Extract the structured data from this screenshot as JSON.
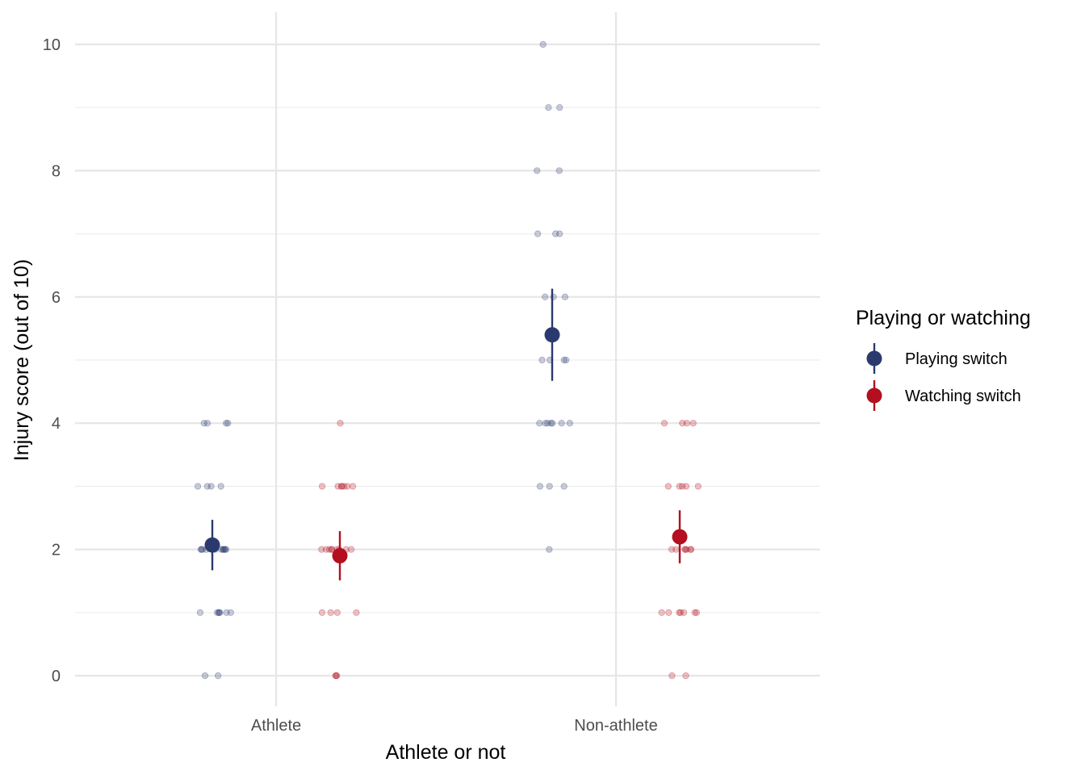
{
  "chart_data": {
    "type": "scatter",
    "title": "",
    "xlabel": "Athlete or not",
    "ylabel": "Injury score (out of 10)",
    "categories": [
      "Athlete",
      "Non-athlete"
    ],
    "ylim": [
      -0.5,
      10.5
    ],
    "y_ticks": [
      0,
      2,
      4,
      6,
      8,
      10
    ],
    "grid": true,
    "legend": {
      "title": "Playing or watching",
      "position": "right"
    },
    "series": [
      {
        "name": "Playing switch",
        "color": "#2b3a6e",
        "summary": [
          {
            "category": "Athlete",
            "mean": 2.07,
            "low": 1.67,
            "high": 2.47
          },
          {
            "category": "Non-athlete",
            "mean": 5.4,
            "low": 4.67,
            "high": 6.13
          }
        ],
        "points": [
          {
            "category": "Athlete",
            "values": [
              0,
              0,
              1,
              1,
              1,
              1,
              1,
              1,
              1,
              2,
              2,
              2,
              2,
              2,
              2,
              2,
              2,
              2,
              2,
              2,
              3,
              3,
              3,
              3,
              4,
              4,
              4,
              4
            ]
          },
          {
            "category": "Non-athlete",
            "values": [
              2,
              3,
              3,
              3,
              4,
              4,
              4,
              4,
              4,
              4,
              4,
              5,
              5,
              5,
              5,
              6,
              6,
              6,
              7,
              7,
              7,
              8,
              8,
              9,
              9,
              10
            ]
          }
        ]
      },
      {
        "name": "Watching switch",
        "color": "#b30f1f",
        "summary": [
          {
            "category": "Athlete",
            "mean": 1.9,
            "low": 1.51,
            "high": 2.29
          },
          {
            "category": "Non-athlete",
            "mean": 2.2,
            "low": 1.78,
            "high": 2.62
          }
        ],
        "points": [
          {
            "category": "Athlete",
            "values": [
              0,
              0,
              0,
              1,
              1,
              1,
              1,
              2,
              2,
              2,
              2,
              2,
              2,
              2,
              2,
              2,
              3,
              3,
              3,
              3,
              3,
              3,
              3,
              4
            ]
          },
          {
            "category": "Non-athlete",
            "values": [
              0,
              0,
              1,
              1,
              1,
              1,
              1,
              1,
              1,
              2,
              2,
              2,
              2,
              2,
              2,
              2,
              3,
              3,
              3,
              3,
              3,
              4,
              4,
              4,
              4
            ]
          }
        ]
      }
    ]
  }
}
